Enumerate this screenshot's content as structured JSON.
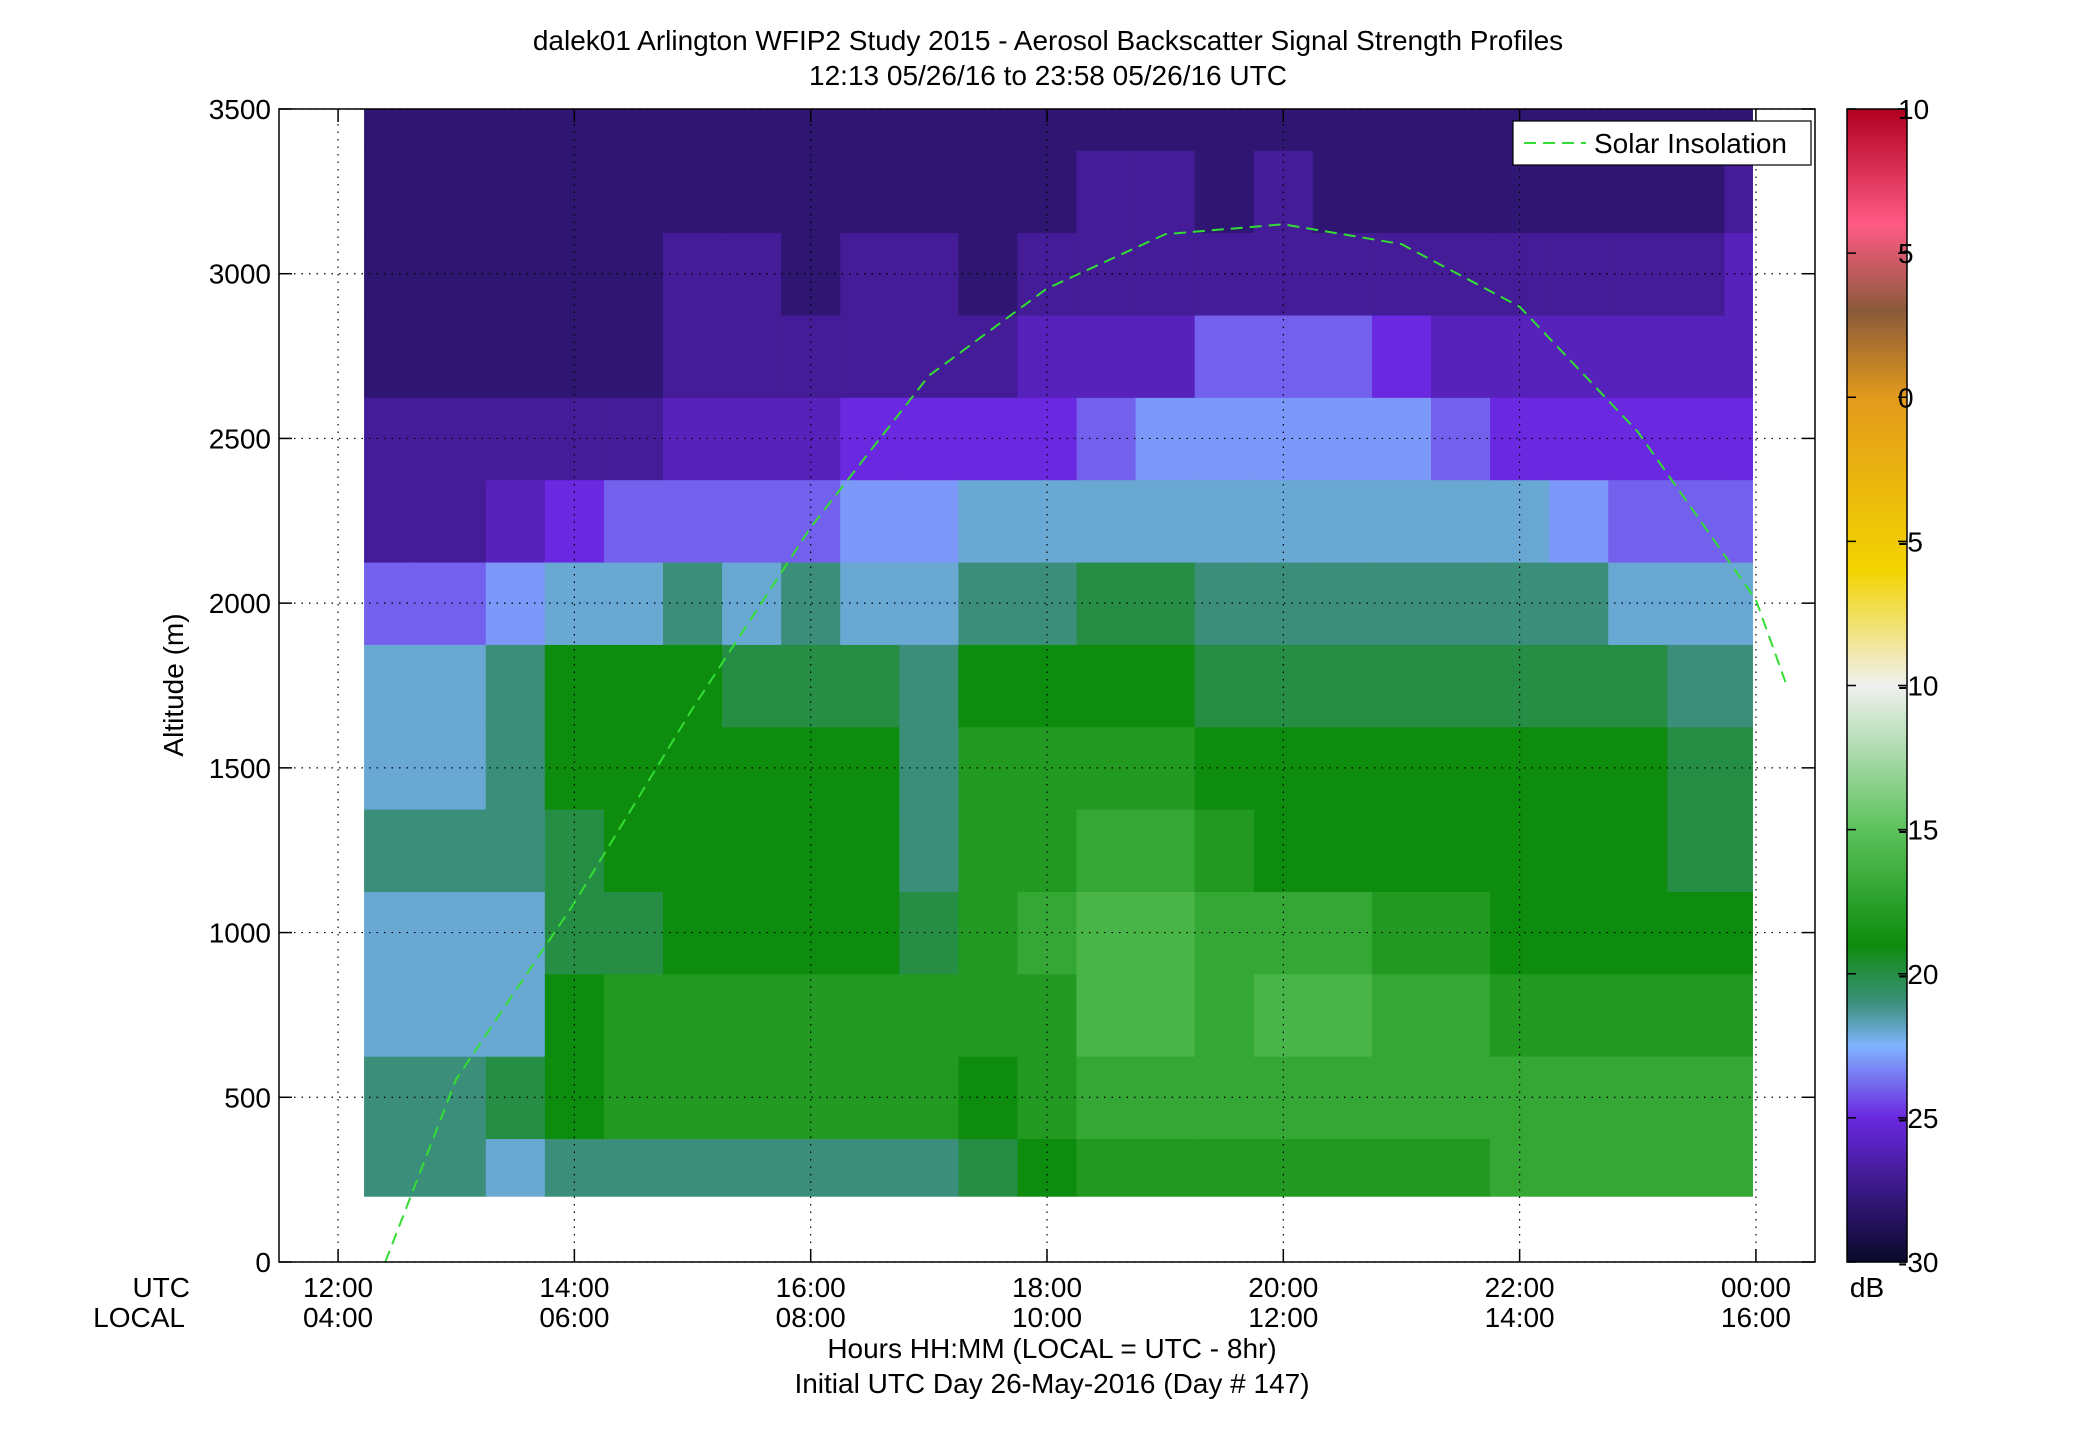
{
  "chart_data": {
    "type": "heatmap",
    "title": "dalek01 Arlington WFIP2 Study 2015 - Aerosol Backscatter Signal Strength Profiles",
    "subtitle": "12:13 05/26/16 to 23:58 05/26/16  UTC",
    "ylabel": "Altitude (m)",
    "xlabel": "Hours HH:MM  (LOCAL = UTC - 8hr)",
    "xlabel2": "Initial UTC Day 26-May-2016 (Day # 147)",
    "axis_row_labels": [
      "UTC",
      "LOCAL"
    ],
    "x_ticks_utc": [
      "12:00",
      "14:00",
      "16:00",
      "18:00",
      "20:00",
      "22:00",
      "00:00"
    ],
    "x_ticks_local": [
      "04:00",
      "06:00",
      "08:00",
      "10:00",
      "12:00",
      "14:00",
      "16:00"
    ],
    "x_tick_hours": [
      12,
      14,
      16,
      18,
      20,
      22,
      24
    ],
    "xlim": [
      11.5,
      24.5
    ],
    "y_ticks": [
      0,
      500,
      1000,
      1500,
      2000,
      2500,
      3000,
      3500
    ],
    "ylim": [
      0,
      3500
    ],
    "grid": true,
    "data_extent": {
      "x": [
        12.22,
        23.97
      ],
      "y": [
        200,
        3500
      ]
    },
    "colorbar": {
      "label": "dB",
      "ticks": [
        10,
        5,
        0,
        -5,
        -10,
        -15,
        -20,
        -25,
        -30
      ],
      "range": [
        -30,
        10
      ],
      "colors": {
        "top": "#b00020",
        "pink": "#ff5a85",
        "brown": "#8a5a3a",
        "orange": "#e39a1c",
        "yellow": "#f2d400",
        "white": "#f0f0f0",
        "lightgreen": "#5cc25c",
        "green": "#0e8c0e",
        "teal": "#3b8f7a",
        "lightblue": "#80b4ff",
        "purple": "#6a28e0",
        "navy": "#0a0a2a"
      }
    },
    "profiles_time_utc": [
      12.22,
      13.0,
      13.5,
      14.0,
      14.5,
      15.0,
      15.5,
      16.0,
      16.5,
      17.0,
      17.5,
      18.0,
      18.5,
      19.0,
      19.5,
      20.0,
      20.5,
      21.0,
      21.5,
      22.0,
      22.5,
      23.0,
      23.5,
      23.97
    ],
    "profiles_altitude_m": [
      250,
      500,
      750,
      1000,
      1250,
      1500,
      1750,
      2000,
      2250,
      2500,
      2750,
      3000,
      3250,
      3500
    ],
    "backscatter_db": [
      [
        -21,
        -21,
        -22,
        -22,
        -21,
        -22,
        -22,
        -24,
        -27,
        -27,
        -28,
        -28,
        -28,
        -28
      ],
      [
        -21,
        -21,
        -22,
        -22,
        -21,
        -22,
        -22,
        -24,
        -27,
        -27,
        -28,
        -28,
        -28,
        -28
      ],
      [
        -22,
        -20,
        -22,
        -22,
        -21,
        -21,
        -21,
        -23,
        -26,
        -27,
        -28,
        -28,
        -28,
        -28
      ],
      [
        -21,
        -19,
        -19,
        -20,
        -20,
        -19,
        -19,
        -22,
        -25,
        -27,
        -28,
        -28,
        -28,
        -28
      ],
      [
        -21,
        -18,
        -18,
        -20,
        -19,
        -19,
        -19,
        -22,
        -24,
        -27,
        -28,
        -28,
        -28,
        -28
      ],
      [
        -21,
        -18,
        -18,
        -19,
        -19,
        -19,
        -19,
        -21,
        -24,
        -26,
        -27,
        -27,
        -28,
        -28
      ],
      [
        -21,
        -18,
        -18,
        -19,
        -19,
        -19,
        -20,
        -22,
        -24,
        -26,
        -27,
        -27,
        -28,
        -28
      ],
      [
        -21,
        -18,
        -18,
        -19,
        -19,
        -19,
        -20,
        -21,
        -24,
        -26,
        -27,
        -28,
        -28,
        -28
      ],
      [
        -21,
        -18,
        -18,
        -19,
        -19,
        -19,
        -20,
        -22,
        -23,
        -25,
        -27,
        -27,
        -28,
        -28
      ],
      [
        -21,
        -18,
        -18,
        -20,
        -21,
        -21,
        -21,
        -22,
        -23,
        -25,
        -27,
        -27,
        -28,
        -28
      ],
      [
        -20,
        -19,
        -18,
        -18,
        -18,
        -18,
        -19,
        -21,
        -22,
        -25,
        -27,
        -28,
        -28,
        -28
      ],
      [
        -19,
        -18,
        -18,
        -17,
        -18,
        -18,
        -19,
        -21,
        -22,
        -25,
        -26,
        -27,
        -28,
        -28
      ],
      [
        -18,
        -17,
        -16,
        -16,
        -17,
        -18,
        -19,
        -20,
        -22,
        -24,
        -26,
        -27,
        -27,
        -28
      ],
      [
        -18,
        -17,
        -16,
        -16,
        -17,
        -18,
        -19,
        -20,
        -22,
        -23,
        -26,
        -27,
        -27,
        -28
      ],
      [
        -18,
        -17,
        -17,
        -17,
        -18,
        -19,
        -20,
        -21,
        -22,
        -23,
        -24,
        -27,
        -28,
        -28
      ],
      [
        -18,
        -17,
        -16,
        -17,
        -19,
        -19,
        -20,
        -21,
        -22,
        -23,
        -24,
        -27,
        -27,
        -28
      ],
      [
        -18,
        -17,
        -16,
        -17,
        -19,
        -19,
        -20,
        -21,
        -22,
        -23,
        -24,
        -27,
        -28,
        -28
      ],
      [
        -18,
        -17,
        -17,
        -18,
        -19,
        -19,
        -20,
        -21,
        -22,
        -23,
        -25,
        -27,
        -28,
        -28
      ],
      [
        -18,
        -17,
        -17,
        -18,
        -19,
        -19,
        -20,
        -21,
        -22,
        -24,
        -26,
        -27,
        -28,
        -28
      ],
      [
        -17,
        -17,
        -18,
        -19,
        -19,
        -19,
        -20,
        -21,
        -22,
        -25,
        -26,
        -27,
        -28,
        -28
      ],
      [
        -17,
        -17,
        -18,
        -19,
        -19,
        -19,
        -20,
        -21,
        -23,
        -25,
        -26,
        -27,
        -28,
        -28
      ],
      [
        -17,
        -17,
        -18,
        -19,
        -19,
        -19,
        -20,
        -22,
        -24,
        -25,
        -26,
        -27,
        -28,
        -28
      ],
      [
        -17,
        -17,
        -18,
        -19,
        -20,
        -20,
        -21,
        -22,
        -24,
        -25,
        -26,
        -27,
        -28,
        -28
      ],
      [
        -17,
        -17,
        -18,
        -19,
        -20,
        -20,
        -21,
        -22,
        -24,
        -25,
        -26,
        -26,
        -27,
        -28
      ]
    ],
    "series": [
      {
        "name": "Solar Insolation",
        "style": "dashed",
        "color": "#33dd33",
        "x": [
          12.4,
          13.0,
          14.0,
          15.0,
          16.0,
          17.0,
          18.0,
          19.0,
          20.0,
          21.0,
          22.0,
          23.0,
          24.0,
          24.25
        ],
        "y": [
          0,
          555,
          1090,
          1680,
          2230,
          2690,
          2955,
          3120,
          3150,
          3090,
          2900,
          2520,
          2010,
          1760
        ]
      }
    ],
    "legend": {
      "placement": "top-right",
      "entries": [
        "Solar Insolation"
      ]
    }
  }
}
